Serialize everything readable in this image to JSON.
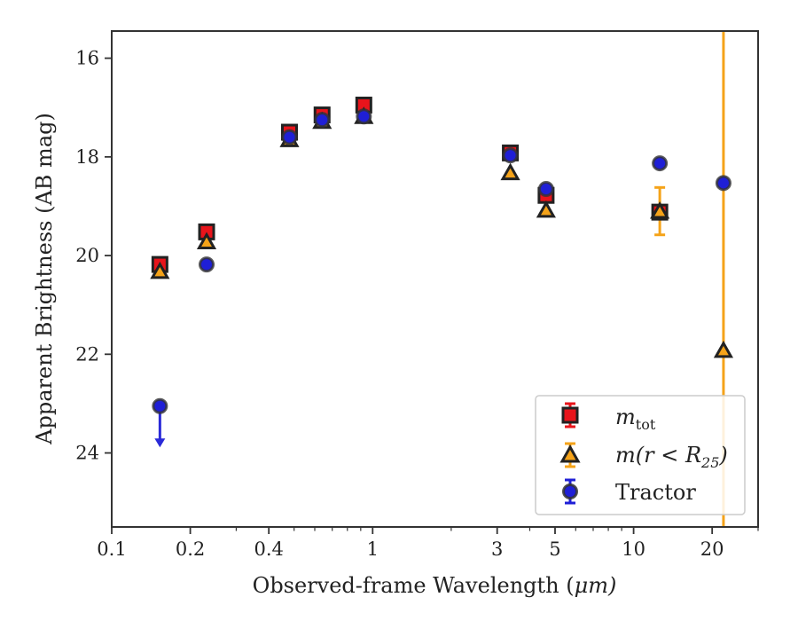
{
  "chart_data": {
    "type": "scatter",
    "xlabel": "Observed-frame Wavelength (μm)",
    "ylabel": "Apparent Brightness (AB mag)",
    "x_scale": "log",
    "xlim": [
      0.1,
      30
    ],
    "ylim": [
      25.5,
      15.45
    ],
    "y_inverted": true,
    "x_ticks": [
      {
        "value": 0.1,
        "label": "0.1"
      },
      {
        "value": 0.2,
        "label": "0.2"
      },
      {
        "value": 0.4,
        "label": "0.4"
      },
      {
        "value": 1,
        "label": "1"
      },
      {
        "value": 3,
        "label": "3"
      },
      {
        "value": 5,
        "label": "5"
      },
      {
        "value": 10,
        "label": "10"
      },
      {
        "value": 20,
        "label": "20"
      }
    ],
    "y_ticks": [
      {
        "value": 16,
        "label": "16"
      },
      {
        "value": 18,
        "label": "18"
      },
      {
        "value": 20,
        "label": "20"
      },
      {
        "value": 22,
        "label": "22"
      },
      {
        "value": 24,
        "label": "24"
      }
    ],
    "grid": false,
    "legend_position": "lower-right",
    "series": [
      {
        "name": "m_tot",
        "legend_label": "mtot",
        "marker": "square",
        "color": "#e8141b",
        "edge": "#222222",
        "points": [
          {
            "x": 0.153,
            "y": 20.18
          },
          {
            "x": 0.231,
            "y": 19.52
          },
          {
            "x": 0.48,
            "y": 17.5
          },
          {
            "x": 0.64,
            "y": 17.15
          },
          {
            "x": 0.925,
            "y": 16.95
          },
          {
            "x": 3.37,
            "y": 17.92
          },
          {
            "x": 4.62,
            "y": 18.78
          },
          {
            "x": 12.6,
            "y": 19.12
          }
        ]
      },
      {
        "name": "m(r < R_25)",
        "legend_label": "m(r < R25)",
        "marker": "triangle",
        "color": "#f5a319",
        "edge": "#222222",
        "points": [
          {
            "x": 0.153,
            "y": 20.32
          },
          {
            "x": 0.231,
            "y": 19.72
          },
          {
            "x": 0.48,
            "y": 17.65
          },
          {
            "x": 0.64,
            "y": 17.28
          },
          {
            "x": 0.925,
            "y": 17.18
          },
          {
            "x": 3.37,
            "y": 18.32
          },
          {
            "x": 4.62,
            "y": 19.08
          },
          {
            "x": 12.6,
            "y": 19.1,
            "yerr": 0.48
          },
          {
            "x": 22.1,
            "y": 21.92,
            "upper_error_to_top": true
          }
        ]
      },
      {
        "name": "Tractor",
        "legend_label": "Tractor",
        "marker": "circle",
        "color": "#1f1fd6",
        "edge": "#333333",
        "points": [
          {
            "x": 0.153,
            "y": 23.05,
            "limit_arrow_to": 23.85
          },
          {
            "x": 0.231,
            "y": 20.18
          },
          {
            "x": 0.48,
            "y": 17.6
          },
          {
            "x": 0.64,
            "y": 17.25
          },
          {
            "x": 0.925,
            "y": 17.18
          },
          {
            "x": 3.37,
            "y": 17.97
          },
          {
            "x": 4.62,
            "y": 18.65
          },
          {
            "x": 12.6,
            "y": 18.13
          },
          {
            "x": 22.1,
            "y": 18.53
          }
        ]
      }
    ]
  },
  "legend": {
    "mtot_main": "m",
    "mtot_sub": "tot",
    "mr_main": "m(r < R",
    "mr_sub": "25",
    "mr_close": ")",
    "tractor": "Tractor"
  },
  "axes": {
    "xlabel_main": "Observed-frame Wavelength (",
    "xlabel_unit": "μ",
    "xlabel_unit_rest": "m)",
    "ylabel": "Apparent Brightness (AB mag)"
  }
}
